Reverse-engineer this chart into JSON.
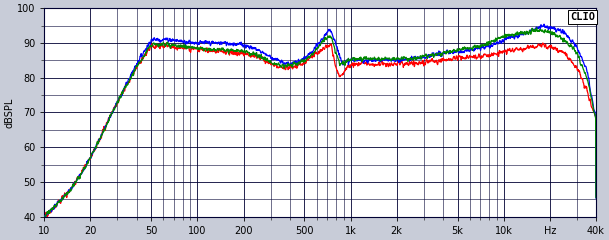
{
  "title": "CLIO",
  "ylabel": "dBSPL",
  "xlabel_right": "Hz",
  "xmin": 10,
  "xmax": 40000,
  "ymin": 40,
  "ymax": 100,
  "yticks": [
    40,
    50,
    60,
    70,
    80,
    90,
    100
  ],
  "background_color": "#c8ccd8",
  "plot_bg_color": "#ffffff",
  "grid_color": "#000033",
  "line_colors": [
    "#0000ff",
    "#ff0000",
    "#008800"
  ],
  "line_width": 0.9,
  "xtick_positions": [
    10,
    20,
    50,
    100,
    200,
    500,
    1000,
    2000,
    5000,
    10000,
    20000,
    40000
  ],
  "xtick_labels": [
    "10",
    "20",
    "50",
    "100",
    "200",
    "500",
    "1k",
    "2k",
    "5k",
    "10k",
    "Hz",
    "40k"
  ]
}
